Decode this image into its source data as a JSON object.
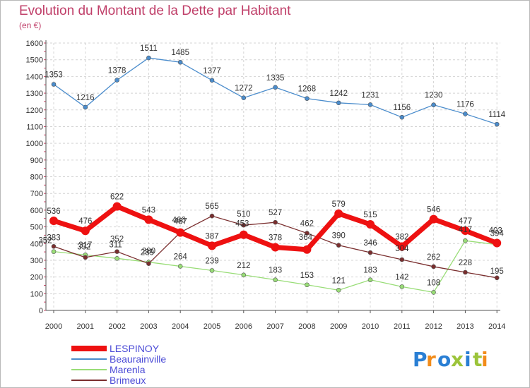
{
  "header": {
    "title": "Evolution du Montant de la Dette par Habitant",
    "subtitle": "(en €)"
  },
  "logo": {
    "text": "Proxiti"
  },
  "chart_data": {
    "type": "line",
    "title": "Evolution du Montant de la Dette par Habitant",
    "subtitle": "(en €)",
    "xlabel": "",
    "ylabel": "",
    "ylim": [
      0,
      1600
    ],
    "ytick_step": 100,
    "grid": true,
    "legend_position": "bottom-left",
    "x": [
      2000,
      2001,
      2002,
      2003,
      2004,
      2005,
      2006,
      2007,
      2008,
      2009,
      2010,
      2011,
      2012,
      2013,
      2014
    ],
    "series": [
      {
        "name": "Beaurainville",
        "color": "#4a8ccc",
        "values": [
          1353,
          1216,
          1378,
          1511,
          1485,
          1377,
          1272,
          1335,
          1268,
          1242,
          1231,
          1156,
          1230,
          1176,
          1114
        ]
      },
      {
        "name": "Marenla",
        "color": "#99dd77",
        "values": [
          352,
          332,
          311,
          289,
          264,
          239,
          212,
          183,
          153,
          121,
          183,
          142,
          108,
          417,
          394
        ]
      },
      {
        "name": "Brimeux",
        "color": "#7a2e2e",
        "values": [
          383,
          317,
          352,
          280,
          467,
          565,
          510,
          527,
          462,
          390,
          346,
          304,
          262,
          228,
          195
        ]
      },
      {
        "name": "LESPINOY",
        "color": "#ee1111",
        "values": [
          536,
          476,
          622,
          543,
          466,
          387,
          453,
          378,
          364,
          579,
          515,
          382,
          546,
          477,
          403
        ]
      }
    ]
  }
}
